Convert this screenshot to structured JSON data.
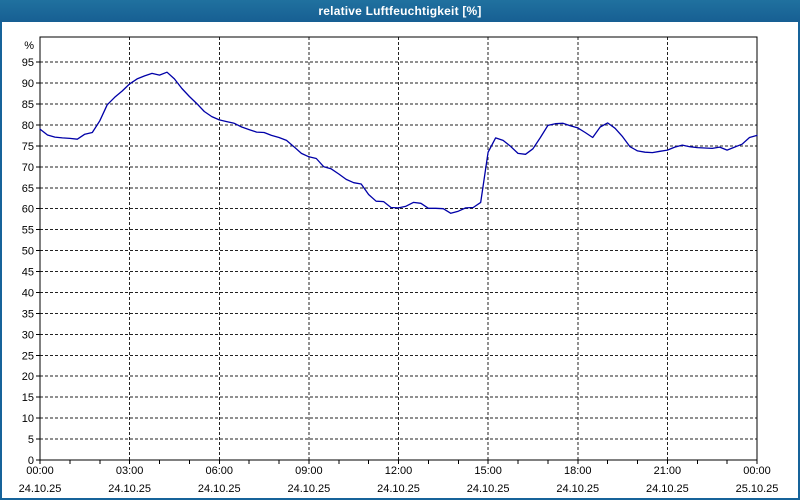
{
  "window": {
    "title": "relative Luftfeuchtigkeit [%]"
  },
  "colors": {
    "titlebar_bg": "#1B6A9E",
    "titlebar_text": "#FFFFFF",
    "window_border": "#16639A",
    "plot_background": "#FFFFFF",
    "grid_color": "#222222",
    "axis_color": "#000000",
    "line_color": "#0000A8"
  },
  "chart_data": {
    "type": "line",
    "title": "relative Luftfeuchtigkeit [%]",
    "xlabel": "",
    "ylabel": "%",
    "unit_label": "%",
    "grid": "dashed",
    "legend": "none",
    "ylim": [
      0,
      101
    ],
    "xlim_hours": [
      0,
      24
    ],
    "y_ticks": [
      0,
      5,
      10,
      15,
      20,
      25,
      30,
      35,
      40,
      45,
      50,
      55,
      60,
      65,
      70,
      75,
      80,
      85,
      90,
      95
    ],
    "x_minor_tick_hours": 1,
    "x_major_ticks": [
      {
        "hour": 0,
        "time": "00:00",
        "date": "24.10.25"
      },
      {
        "hour": 3,
        "time": "03:00",
        "date": "24.10.25"
      },
      {
        "hour": 6,
        "time": "06:00",
        "date": "24.10.25"
      },
      {
        "hour": 9,
        "time": "09:00",
        "date": "24.10.25"
      },
      {
        "hour": 12,
        "time": "12:00",
        "date": "24.10.25"
      },
      {
        "hour": 15,
        "time": "15:00",
        "date": "24.10.25"
      },
      {
        "hour": 18,
        "time": "18:00",
        "date": "24.10.25"
      },
      {
        "hour": 21,
        "time": "21:00",
        "date": "24.10.25"
      },
      {
        "hour": 24,
        "time": "00:00",
        "date": "25.10.25"
      }
    ],
    "series": [
      {
        "name": "relative Luftfeuchtigkeit",
        "color": "#0000A8",
        "x_start_hour": 0,
        "x_step_hours": 0.25,
        "values": [
          79.0,
          77.6,
          77.1,
          76.9,
          76.8,
          76.6,
          77.8,
          78.2,
          81.0,
          84.8,
          86.6,
          88.1,
          89.8,
          91.0,
          91.7,
          92.3,
          91.9,
          92.6,
          91.0,
          88.7,
          86.8,
          85.1,
          83.2,
          82.0,
          81.2,
          80.8,
          80.4,
          79.5,
          78.9,
          78.3,
          78.2,
          77.5,
          77.0,
          76.3,
          74.8,
          73.2,
          72.4,
          72.0,
          70.0,
          69.5,
          68.3,
          67.0,
          66.2,
          65.9,
          63.4,
          61.8,
          61.7,
          60.3,
          60.2,
          60.6,
          61.5,
          61.3,
          60.1,
          60.1,
          60.0,
          58.9,
          59.4,
          60.2,
          60.3,
          61.5,
          73.5,
          76.9,
          76.3,
          74.9,
          73.2,
          73.0,
          74.3,
          77.0,
          79.9,
          80.3,
          80.4,
          79.8,
          79.3,
          78.2,
          77.0,
          79.5,
          80.5,
          79.2,
          77.2,
          74.8,
          73.8,
          73.5,
          73.4,
          73.7,
          74.0,
          74.7,
          75.2,
          74.8,
          74.6,
          74.5,
          74.4,
          74.7,
          74.0,
          74.7,
          75.4,
          77.0,
          77.5
        ]
      }
    ]
  }
}
